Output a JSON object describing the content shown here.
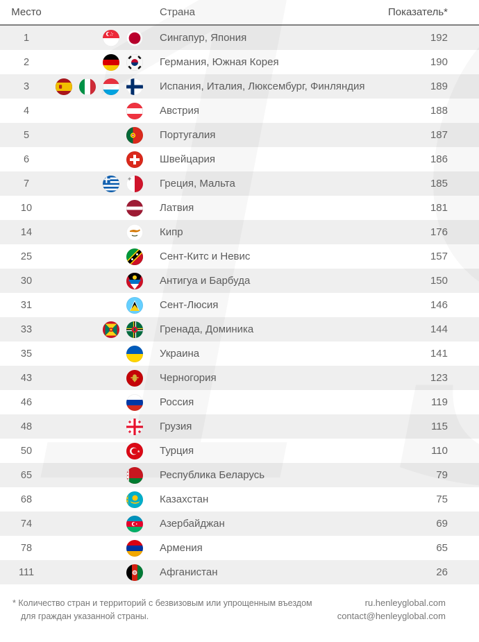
{
  "watermark_text": "19",
  "colors": {
    "stripe": "#efefef",
    "header_rule": "#808080",
    "header_text": "#4d4d4d",
    "cell_text": "#666666",
    "footer_text": "#777777"
  },
  "chart_data": {
    "type": "table",
    "columns": [
      "Место",
      "Страна",
      "Показатель*"
    ],
    "rows": [
      {
        "rank": "1",
        "flags": [
          "flag-singapore",
          "flag-japan"
        ],
        "countries": "Сингапур, Япония",
        "score": 192
      },
      {
        "rank": "2",
        "flags": [
          "flag-germany",
          "flag-south-korea"
        ],
        "countries": "Германия, Южная Корея",
        "score": 190
      },
      {
        "rank": "3",
        "flags": [
          "flag-spain",
          "flag-italy",
          "flag-luxembourg",
          "flag-finland"
        ],
        "countries": "Испания, Италия, Люксембург, Финляндия",
        "score": 189
      },
      {
        "rank": "4",
        "flags": [
          "flag-austria"
        ],
        "countries": "Австрия",
        "score": 188
      },
      {
        "rank": "5",
        "flags": [
          "flag-portugal"
        ],
        "countries": "Португалия",
        "score": 187
      },
      {
        "rank": "6",
        "flags": [
          "flag-switzerland"
        ],
        "countries": "Швейцария",
        "score": 186
      },
      {
        "rank": "7",
        "flags": [
          "flag-greece",
          "flag-malta"
        ],
        "countries": "Греция, Мальта",
        "score": 185
      },
      {
        "rank": "10",
        "flags": [
          "flag-latvia"
        ],
        "countries": "Латвия",
        "score": 181
      },
      {
        "rank": "14",
        "flags": [
          "flag-cyprus"
        ],
        "countries": "Кипр",
        "score": 176
      },
      {
        "rank": "25",
        "flags": [
          "flag-saint-kitts-nevis"
        ],
        "countries": "Сент-Китс и Невис",
        "score": 157
      },
      {
        "rank": "30",
        "flags": [
          "flag-antigua-barbuda"
        ],
        "countries": "Антигуа и Барбуда",
        "score": 150
      },
      {
        "rank": "31",
        "flags": [
          "flag-saint-lucia"
        ],
        "countries": "Сент-Люсия",
        "score": 146
      },
      {
        "rank": "33",
        "flags": [
          "flag-grenada",
          "flag-dominica"
        ],
        "countries": "Гренада, Доминика",
        "score": 144
      },
      {
        "rank": "35",
        "flags": [
          "flag-ukraine"
        ],
        "countries": "Украина",
        "score": 141
      },
      {
        "rank": "43",
        "flags": [
          "flag-montenegro"
        ],
        "countries": "Черногория",
        "score": 123
      },
      {
        "rank": "46",
        "flags": [
          "flag-russia"
        ],
        "countries": "Россия",
        "score": 119
      },
      {
        "rank": "48",
        "flags": [
          "flag-georgia"
        ],
        "countries": "Грузия",
        "score": 115
      },
      {
        "rank": "50",
        "flags": [
          "flag-turkey"
        ],
        "countries": "Турция",
        "score": 110
      },
      {
        "rank": "65",
        "flags": [
          "flag-belarus"
        ],
        "countries": "Республика Беларусь",
        "score": 79
      },
      {
        "rank": "68",
        "flags": [
          "flag-kazakhstan"
        ],
        "countries": "Казахстан",
        "score": 75
      },
      {
        "rank": "74",
        "flags": [
          "flag-azerbaijan"
        ],
        "countries": "Азербайджан",
        "score": 69
      },
      {
        "rank": "78",
        "flags": [
          "flag-armenia"
        ],
        "countries": "Армения",
        "score": 65
      },
      {
        "rank": "111",
        "flags": [
          "flag-afghanistan"
        ],
        "countries": "Афганистан",
        "score": 26
      }
    ]
  },
  "footer": {
    "note_lines": [
      "* Количество стран и территорий с безвизовым или упрощенным въездом",
      "для граждан указанной страны."
    ],
    "site": "ru.henleyglobal.com",
    "email": "contact@henleyglobal.com"
  }
}
